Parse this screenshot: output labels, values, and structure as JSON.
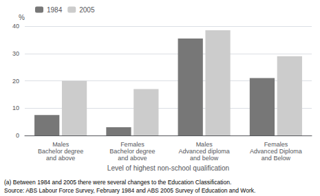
{
  "chart_data": {
    "type": "bar",
    "categories": [
      "Males\nBachelor degree\nand above",
      "Females\nBachelor degree\nand above",
      "Males\nAdvanced diploma\nand below",
      "Females\nAdvanced Diploma\nand Below"
    ],
    "series": [
      {
        "name": "1984",
        "color": "#777777",
        "values": [
          7.5,
          3.0,
          35.5,
          21.0
        ]
      },
      {
        "name": "2005",
        "color": "#cccccc",
        "values": [
          20.0,
          17.0,
          38.5,
          29.0
        ]
      }
    ],
    "ylabel": "%",
    "xlabel": "Level of highest non-school qualification",
    "annotations": [
      "(a) Between 1984 and 2005 there were several changes to the Education Classification.",
      "Source: ABS Labour Force Survey, February 1984 and ABS 2005 Survey of Education and Work."
    ],
    "ylim": [
      0,
      40
    ],
    "yticks": [
      0,
      10,
      20,
      30,
      40
    ],
    "grid": true,
    "legend": "upper left"
  }
}
